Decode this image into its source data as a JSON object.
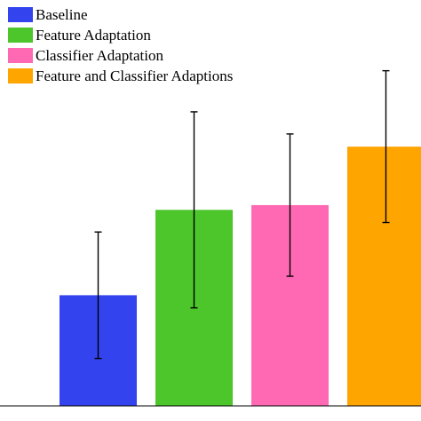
{
  "chart_data": {
    "type": "bar",
    "title": "",
    "xlabel": "",
    "ylabel": "",
    "ylim": [
      0,
      100
    ],
    "grid": false,
    "legend": "top-left",
    "categories": [
      "Baseline",
      "Feature Adaptation",
      "Classifier Adaptation",
      "Feature and Classifier Adaptions"
    ],
    "values": [
      35,
      62,
      63.5,
      82
    ],
    "error": [
      20,
      31,
      22.5,
      24
    ],
    "colors": [
      "#3344ee",
      "#4cc62a",
      "#ff69b4",
      "#ffa500"
    ]
  }
}
